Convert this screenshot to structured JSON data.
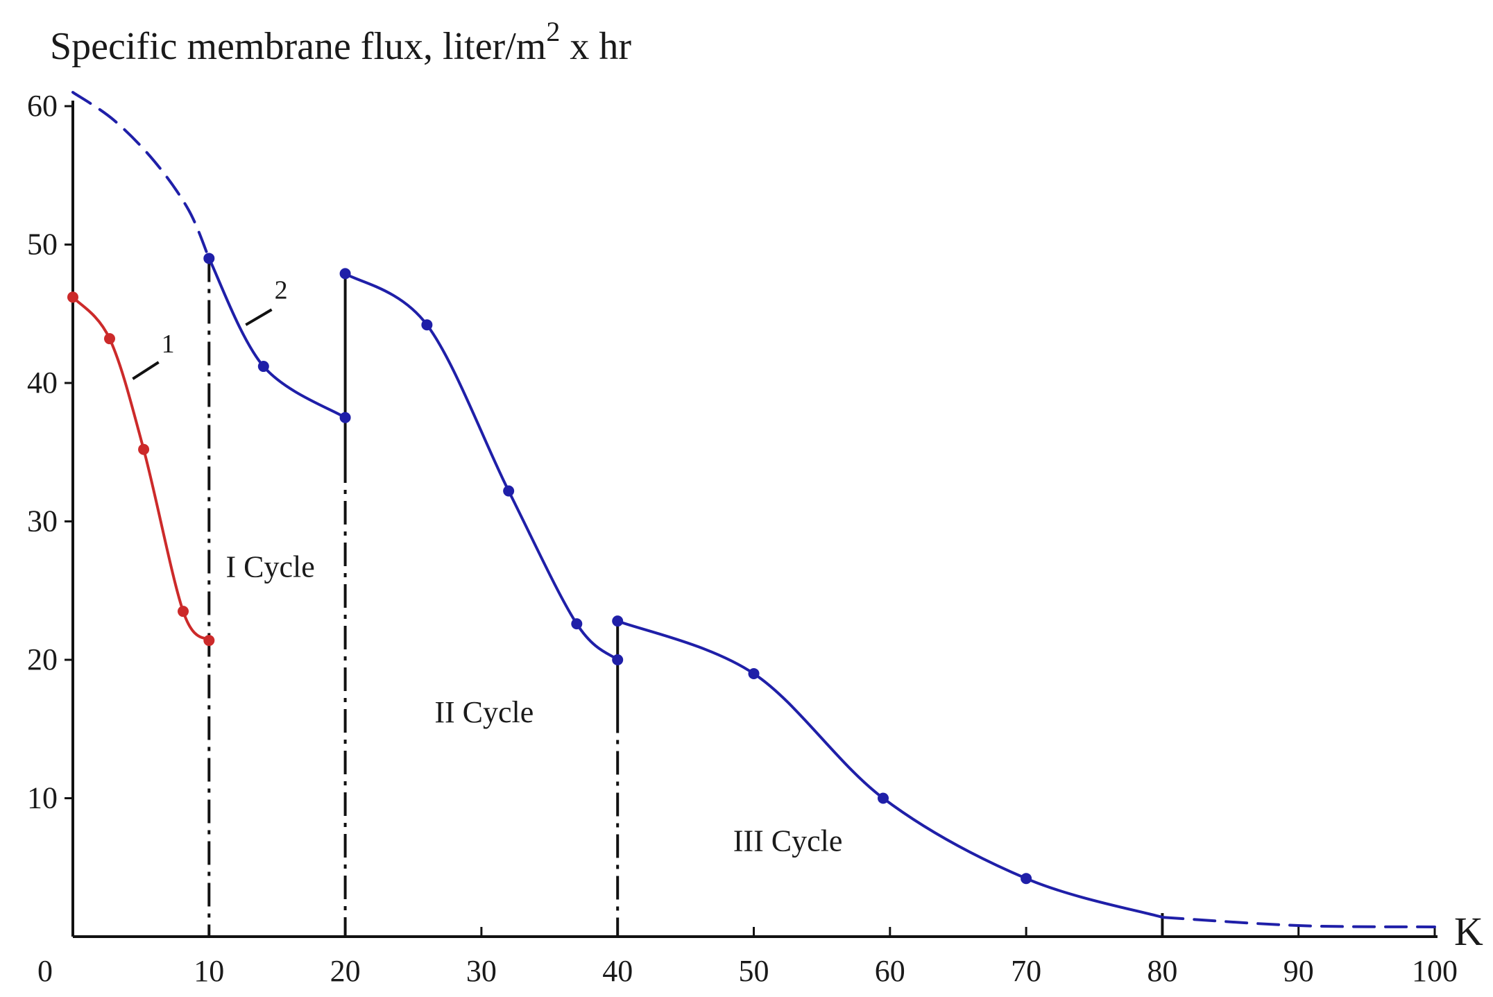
{
  "chart_data": {
    "type": "line",
    "ylabel_parts": {
      "main": "Specific membrane flux, liter/m",
      "superscript": "2",
      "suffix": "x hr"
    },
    "xlabel": "K",
    "xlim": [
      0,
      100
    ],
    "ylim": [
      0,
      60
    ],
    "x_ticks": [
      0,
      10,
      20,
      30,
      40,
      50,
      60,
      70,
      80,
      90,
      100
    ],
    "y_ticks": [
      10,
      20,
      30,
      40,
      50,
      60
    ],
    "x_tick_labels": [
      "0",
      "10",
      "20",
      "30",
      "40",
      "50",
      "60",
      "70",
      "80",
      "90",
      "100"
    ],
    "y_tick_labels": [
      "10",
      "20",
      "30",
      "40",
      "50",
      "60"
    ],
    "grid": false,
    "colors": {
      "curve1": "#cc2a2a",
      "curve2": "#1f1fa8",
      "axis": "#111111"
    },
    "series": [
      {
        "name": "1",
        "color": "#cc2a2a",
        "markers": true,
        "points": [
          [
            0,
            46.2
          ],
          [
            2.7,
            43.2
          ],
          [
            5.2,
            35.2
          ],
          [
            8.1,
            23.5
          ],
          [
            10,
            21.4
          ]
        ]
      },
      {
        "name": "2",
        "color": "#1f1fa8",
        "markers": true,
        "segments": [
          {
            "style": "dashed",
            "points": [
              [
                0,
                61
              ],
              [
                3,
                59
              ],
              [
                6,
                56
              ],
              [
                8.5,
                52.5
              ],
              [
                10,
                49
              ]
            ]
          },
          {
            "style": "solid",
            "points": [
              [
                10,
                49
              ],
              [
                14,
                41.2
              ],
              [
                20,
                37.5
              ]
            ]
          },
          {
            "style": "solid",
            "points": [
              [
                20,
                47.9
              ],
              [
                26,
                44.2
              ],
              [
                32,
                32.2
              ],
              [
                37,
                22.6
              ],
              [
                40,
                20
              ]
            ]
          },
          {
            "style": "solid",
            "points": [
              [
                40,
                22.8
              ],
              [
                50,
                19
              ],
              [
                59.5,
                10
              ],
              [
                70,
                4.2
              ],
              [
                80,
                1.4
              ]
            ]
          },
          {
            "style": "dashed",
            "points": [
              [
                80,
                1.4
              ],
              [
                90,
                0.8
              ],
              [
                100,
                0.7
              ]
            ]
          }
        ],
        "marker_points": [
          [
            10,
            49
          ],
          [
            14,
            41.2
          ],
          [
            20,
            37.5
          ],
          [
            20,
            47.9
          ],
          [
            26,
            44.2
          ],
          [
            32,
            32.2
          ],
          [
            37,
            22.6
          ],
          [
            40,
            20
          ],
          [
            40,
            22.8
          ],
          [
            50,
            19
          ],
          [
            59.5,
            10
          ],
          [
            70,
            4.2
          ]
        ]
      }
    ],
    "cycle_dividers": [
      {
        "x": 10,
        "top": 49,
        "style": "dashdot"
      },
      {
        "x": 20,
        "top": 47.9,
        "style": "mixed"
      },
      {
        "x": 40,
        "top": 22.8,
        "style": "mixed"
      },
      {
        "x": 80,
        "top": 1.4,
        "style": "solid"
      }
    ],
    "annotations": [
      {
        "text": "I Cycle",
        "x": 14.5,
        "y": 26
      },
      {
        "text": "II Cycle",
        "x": 30.2,
        "y": 15.5
      },
      {
        "text": "III Cycle",
        "x": 52.5,
        "y": 6.2
      }
    ],
    "curve_labels": [
      {
        "text": "1",
        "x": 6.3,
        "y": 42.2,
        "leader_from": [
          4.4,
          40.3
        ],
        "leader_to": [
          6.3,
          41.5
        ]
      },
      {
        "text": "2",
        "x": 14.6,
        "y": 46.1,
        "leader_from": [
          12.7,
          44.2
        ],
        "leader_to": [
          14.6,
          45.3
        ]
      }
    ]
  }
}
